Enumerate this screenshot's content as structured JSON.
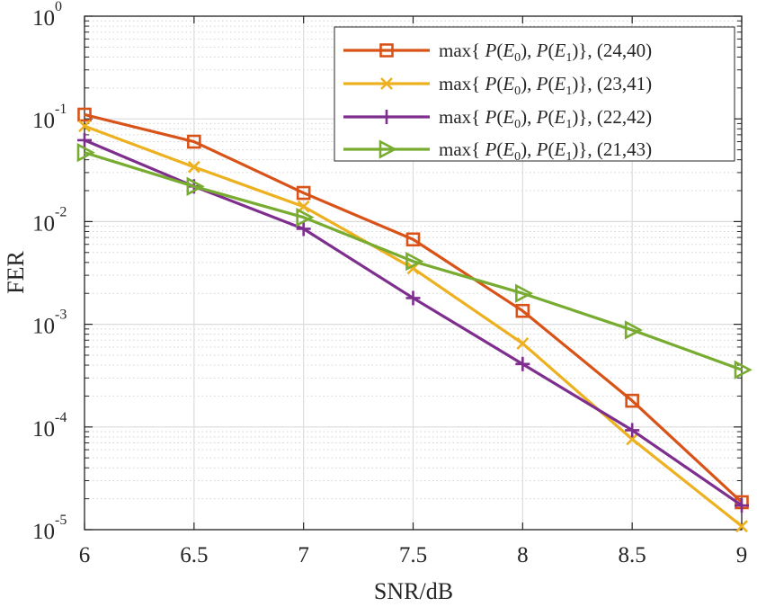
{
  "chart_data": {
    "type": "line",
    "title": "",
    "xlabel": "SNR/dB",
    "ylabel": "FER",
    "xscale": "linear",
    "yscale": "log",
    "xlim": [
      6,
      9
    ],
    "ylim": [
      1e-05,
      1
    ],
    "x_ticks": [
      "6",
      "6.5",
      "7",
      "7.5",
      "8",
      "8.5",
      "9"
    ],
    "y_ticks": [
      {
        "base": "10",
        "exp": "0",
        "value": 1
      },
      {
        "base": "10",
        "exp": "-1",
        "value": 0.1
      },
      {
        "base": "10",
        "exp": "-2",
        "value": 0.01
      },
      {
        "base": "10",
        "exp": "-3",
        "value": 0.001
      },
      {
        "base": "10",
        "exp": "-4",
        "value": 0.0001
      },
      {
        "base": "10",
        "exp": "-5",
        "value": 1e-05
      }
    ],
    "grid": true,
    "minor_grid": true,
    "legend_position": "top-right",
    "x": [
      6,
      6.5,
      7,
      7.5,
      8,
      8.5,
      9
    ],
    "series": [
      {
        "name": "max{ P(E0), P(E1)}, (24,40)",
        "legend": {
          "pre": "max{ ",
          "v1": "P",
          "a1": "(",
          "e1": "E",
          "s1": "0",
          "b1": "), ",
          "v2": "P",
          "a2": "(",
          "e2": "E",
          "s2": "1",
          "b2": ")}, (24,40)"
        },
        "color": "#D95319",
        "marker": "square",
        "values": [
          0.11,
          0.06,
          0.019,
          0.0067,
          0.00135,
          0.00018,
          1.85e-05
        ]
      },
      {
        "name": "max{ P(E0), P(E1)}, (23,41)",
        "legend": {
          "pre": "max{ ",
          "v1": "P",
          "a1": "(",
          "e1": "E",
          "s1": "0",
          "b1": "), ",
          "v2": "P",
          "a2": "(",
          "e2": "E",
          "s2": "1",
          "b2": ")}, (23,41)"
        },
        "color": "#EDB120",
        "marker": "x",
        "values": [
          0.085,
          0.034,
          0.014,
          0.0035,
          0.00065,
          7.6e-05,
          1.08e-05
        ]
      },
      {
        "name": "max{ P(E0), P(E1)}, (22,42)",
        "legend": {
          "pre": "max{ ",
          "v1": "P",
          "a1": "(",
          "e1": "E",
          "s1": "0",
          "b1": "), ",
          "v2": "P",
          "a2": "(",
          "e2": "E",
          "s2": "1",
          "b2": ")}, (22,42)"
        },
        "color": "#7E2F8E",
        "marker": "plus",
        "values": [
          0.062,
          0.022,
          0.0085,
          0.0018,
          0.00041,
          9.3e-05,
          1.72e-05
        ]
      },
      {
        "name": "max{ P(E0), P(E1)}, (21,43)",
        "legend": {
          "pre": "max{ ",
          "v1": "P",
          "a1": "(",
          "e1": "E",
          "s1": "0",
          "b1": "), ",
          "v2": "P",
          "a2": "(",
          "e2": "E",
          "s2": "1",
          "b2": ")}, (21,43)"
        },
        "color": "#77AC30",
        "marker": "triangle-right",
        "values": [
          0.047,
          0.022,
          0.011,
          0.0041,
          0.002,
          0.00088,
          0.00036
        ]
      }
    ]
  }
}
